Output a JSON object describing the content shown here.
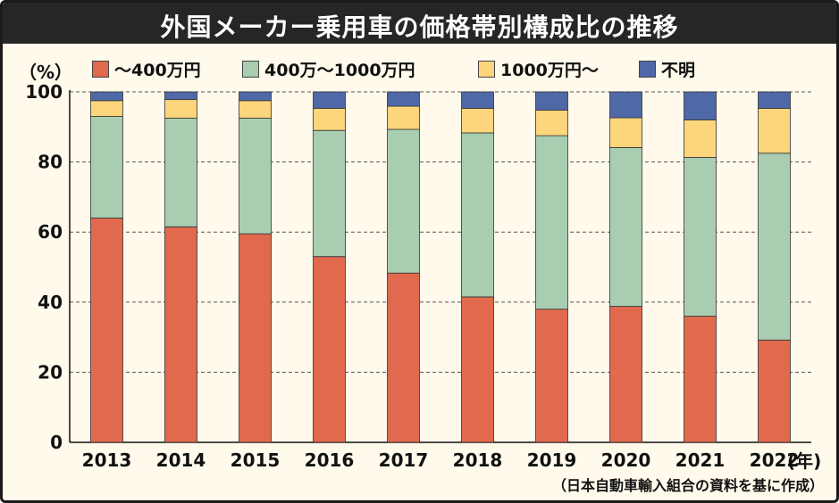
{
  "title": "外国メーカー乗用車の価格帯別構成比の推移",
  "unit_label": "（%）",
  "year_unit": "(年)",
  "source": "（日本自動車輸入組合の資料を基に作成）",
  "colors": {
    "low": "#e0694e",
    "mid": "#a9cdb0",
    "high": "#fcd57c",
    "unknown": "#4f68a8",
    "title_bg": "#262626",
    "plot_bg": "#fffaeb"
  },
  "chart_data": {
    "type": "bar",
    "stacked": true,
    "categories": [
      "2013",
      "2014",
      "2015",
      "2016",
      "2017",
      "2018",
      "2019",
      "2020",
      "2021",
      "2022"
    ],
    "series": [
      {
        "name": "～400万円",
        "values": [
          64,
          61.5,
          59.5,
          53,
          48.3,
          41.5,
          38,
          38.8,
          36,
          29.2
        ]
      },
      {
        "name": "400万～1000万円",
        "values": [
          29,
          31,
          33,
          36,
          41,
          46.8,
          49.5,
          45.3,
          45.3,
          53.3
        ]
      },
      {
        "name": "1000万円～",
        "values": [
          4.5,
          5.3,
          5,
          6.3,
          6.6,
          7,
          7.3,
          8.5,
          10.7,
          12.8
        ]
      },
      {
        "name": "不明",
        "values": [
          2.5,
          2.2,
          2.5,
          4.7,
          4.1,
          4.7,
          5.2,
          7.4,
          8,
          4.7
        ]
      }
    ],
    "ylim": [
      0,
      100
    ],
    "yticks": [
      0,
      20,
      40,
      60,
      80,
      100
    ],
    "grid": true,
    "legend_position": "top"
  }
}
